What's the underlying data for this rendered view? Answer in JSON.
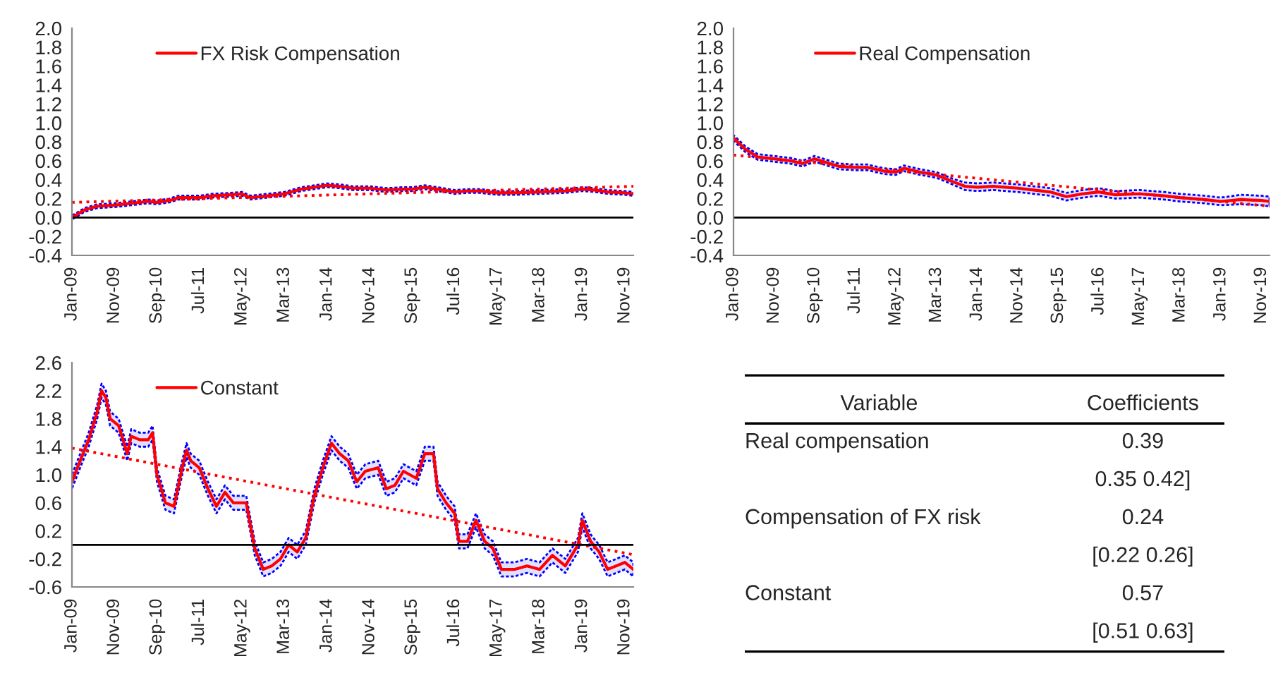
{
  "chart_data": [
    {
      "type": "line",
      "legend": "top left",
      "grid": false,
      "xlim": [
        "2009-01",
        "2020-01"
      ],
      "ylim": [
        -0.4,
        2.0
      ],
      "yticks": [
        {
          "value": -0.4,
          "label": "-0.4"
        },
        {
          "value": -0.2,
          "label": "-0.2"
        },
        {
          "value": 0,
          "label": "0.0"
        },
        {
          "value": 0.2,
          "label": "0.2"
        },
        {
          "value": 0.4,
          "label": "0.4"
        },
        {
          "value": 0.6,
          "label": "0.6"
        },
        {
          "value": 0.8,
          "label": "0.8"
        },
        {
          "value": 1.0,
          "label": "1.0"
        },
        {
          "value": 1.2,
          "label": "1.2"
        },
        {
          "value": 1.4,
          "label": "1.4"
        },
        {
          "value": 1.6,
          "label": "1.6"
        },
        {
          "value": 1.8,
          "label": "1.8"
        },
        {
          "value": 2.0,
          "label": "2.0"
        }
      ],
      "xticks": [
        {
          "value": "2009-01",
          "label": "Jan-09"
        },
        {
          "value": "2009-11",
          "label": "Nov-09"
        },
        {
          "value": "2010-09",
          "label": "Sep-10"
        },
        {
          "value": "2011-07",
          "label": "Jul-11"
        },
        {
          "value": "2012-05",
          "label": "May-12"
        },
        {
          "value": "2013-03",
          "label": "Mar-13"
        },
        {
          "value": "2014-01",
          "label": "Jan-14"
        },
        {
          "value": "2014-11",
          "label": "Nov-14"
        },
        {
          "value": "2015-09",
          "label": "Sep-15"
        },
        {
          "value": "2016-07",
          "label": "Jul-16"
        },
        {
          "value": "2017-05",
          "label": "May-17"
        },
        {
          "value": "2018-03",
          "label": "Mar-18"
        },
        {
          "value": "2019-01",
          "label": "Jan-19"
        },
        {
          "value": "2019-11",
          "label": "Nov-19"
        }
      ],
      "ref_lines": [
        {
          "axis": "y",
          "value": 0,
          "color": "#000000"
        }
      ],
      "series": [
        {
          "name": "FX Risk Compensation",
          "color": "#ff0000",
          "x": [
            "2009-01",
            "2009-04",
            "2009-07",
            "2009-11",
            "2010-03",
            "2010-07",
            "2010-09",
            "2010-12",
            "2011-02",
            "2011-07",
            "2011-10",
            "2012-02",
            "2012-05",
            "2012-07",
            "2012-11",
            "2013-03",
            "2013-07",
            "2013-10",
            "2014-01",
            "2014-04",
            "2014-07",
            "2014-11",
            "2015-03",
            "2015-07",
            "2015-09",
            "2015-12",
            "2016-03",
            "2016-07",
            "2016-10",
            "2017-01",
            "2017-05",
            "2017-09",
            "2018-03",
            "2018-09",
            "2019-01",
            "2019-04",
            "2019-07",
            "2019-11",
            "2020-01"
          ],
          "values": [
            0.0,
            0.08,
            0.12,
            0.13,
            0.15,
            0.17,
            0.16,
            0.18,
            0.21,
            0.21,
            0.23,
            0.24,
            0.25,
            0.21,
            0.23,
            0.25,
            0.3,
            0.32,
            0.34,
            0.33,
            0.31,
            0.31,
            0.29,
            0.3,
            0.3,
            0.32,
            0.3,
            0.27,
            0.28,
            0.28,
            0.26,
            0.26,
            0.27,
            0.28,
            0.3,
            0.29,
            0.27,
            0.26,
            0.25
          ],
          "lower": [
            -0.02,
            0.06,
            0.1,
            0.11,
            0.13,
            0.15,
            0.14,
            0.16,
            0.19,
            0.19,
            0.21,
            0.22,
            0.23,
            0.19,
            0.21,
            0.23,
            0.28,
            0.3,
            0.32,
            0.31,
            0.29,
            0.29,
            0.27,
            0.28,
            0.28,
            0.3,
            0.28,
            0.25,
            0.26,
            0.26,
            0.24,
            0.24,
            0.25,
            0.26,
            0.28,
            0.27,
            0.25,
            0.24,
            0.23
          ],
          "upper": [
            0.02,
            0.1,
            0.14,
            0.15,
            0.17,
            0.19,
            0.18,
            0.2,
            0.23,
            0.23,
            0.25,
            0.26,
            0.27,
            0.23,
            0.25,
            0.27,
            0.32,
            0.34,
            0.36,
            0.35,
            0.33,
            0.33,
            0.31,
            0.32,
            0.32,
            0.34,
            0.32,
            0.29,
            0.3,
            0.3,
            0.28,
            0.28,
            0.29,
            0.3,
            0.32,
            0.31,
            0.29,
            0.28,
            0.27
          ]
        },
        {
          "type": "line",
          "color": "#ff0000",
          "line_style": "dotted",
          "x": [
            "2009-01",
            "2020-01"
          ],
          "values": [
            0.16,
            0.33
          ]
        }
      ]
    },
    {
      "type": "line",
      "legend": "top left",
      "grid": false,
      "xlim": [
        "2009-01",
        "2020-01"
      ],
      "ylim": [
        -0.4,
        2.0
      ],
      "yticks": [
        {
          "value": -0.4,
          "label": "-0.4"
        },
        {
          "value": -0.2,
          "label": "-0.2"
        },
        {
          "value": 0,
          "label": "0.0"
        },
        {
          "value": 0.2,
          "label": "0.2"
        },
        {
          "value": 0.4,
          "label": "0.4"
        },
        {
          "value": 0.6,
          "label": "0.6"
        },
        {
          "value": 0.8,
          "label": "0.8"
        },
        {
          "value": 1.0,
          "label": "1.0"
        },
        {
          "value": 1.2,
          "label": "1.2"
        },
        {
          "value": 1.4,
          "label": "1.4"
        },
        {
          "value": 1.6,
          "label": "1.6"
        },
        {
          "value": 1.8,
          "label": "1.8"
        },
        {
          "value": 2.0,
          "label": "2.0"
        }
      ],
      "xticks": [
        {
          "value": "2009-01",
          "label": "Jan-09"
        },
        {
          "value": "2009-11",
          "label": "Nov-09"
        },
        {
          "value": "2010-09",
          "label": "Sep-10"
        },
        {
          "value": "2011-07",
          "label": "Jul-11"
        },
        {
          "value": "2012-05",
          "label": "May-12"
        },
        {
          "value": "2013-03",
          "label": "Mar-13"
        },
        {
          "value": "2014-01",
          "label": "Jan-14"
        },
        {
          "value": "2014-11",
          "label": "Nov-14"
        },
        {
          "value": "2015-09",
          "label": "Sep-15"
        },
        {
          "value": "2016-07",
          "label": "Jul-16"
        },
        {
          "value": "2017-05",
          "label": "May-17"
        },
        {
          "value": "2018-03",
          "label": "Mar-18"
        },
        {
          "value": "2019-01",
          "label": "Jan-19"
        },
        {
          "value": "2019-11",
          "label": "Nov-19"
        }
      ],
      "ref_lines": [
        {
          "axis": "y",
          "value": 0,
          "color": "#000000"
        }
      ],
      "series": [
        {
          "name": "Real Compensation",
          "color": "#ff0000",
          "x": [
            "2009-01",
            "2009-04",
            "2009-07",
            "2009-11",
            "2010-03",
            "2010-06",
            "2010-09",
            "2010-12",
            "2011-03",
            "2011-07",
            "2011-10",
            "2012-02",
            "2012-05",
            "2012-07",
            "2012-11",
            "2013-03",
            "2013-07",
            "2013-10",
            "2014-01",
            "2014-05",
            "2014-11",
            "2015-03",
            "2015-07",
            "2015-11",
            "2016-03",
            "2016-07",
            "2016-11",
            "2017-05",
            "2017-11",
            "2018-03",
            "2018-09",
            "2019-01",
            "2019-06",
            "2019-11",
            "2020-01"
          ],
          "values": [
            0.84,
            0.72,
            0.64,
            0.62,
            0.6,
            0.57,
            0.62,
            0.58,
            0.54,
            0.53,
            0.53,
            0.49,
            0.48,
            0.52,
            0.48,
            0.45,
            0.38,
            0.33,
            0.32,
            0.33,
            0.31,
            0.29,
            0.27,
            0.22,
            0.25,
            0.27,
            0.24,
            0.25,
            0.23,
            0.21,
            0.19,
            0.17,
            0.19,
            0.18,
            0.17
          ],
          "lower": [
            0.81,
            0.69,
            0.61,
            0.59,
            0.57,
            0.54,
            0.59,
            0.55,
            0.51,
            0.5,
            0.5,
            0.46,
            0.45,
            0.49,
            0.45,
            0.42,
            0.35,
            0.29,
            0.28,
            0.29,
            0.27,
            0.25,
            0.23,
            0.18,
            0.21,
            0.23,
            0.2,
            0.21,
            0.19,
            0.17,
            0.15,
            0.13,
            0.14,
            0.13,
            0.12
          ],
          "upper": [
            0.87,
            0.75,
            0.67,
            0.65,
            0.63,
            0.6,
            0.65,
            0.61,
            0.57,
            0.56,
            0.56,
            0.52,
            0.51,
            0.55,
            0.51,
            0.48,
            0.41,
            0.37,
            0.36,
            0.37,
            0.35,
            0.33,
            0.31,
            0.26,
            0.29,
            0.31,
            0.28,
            0.29,
            0.27,
            0.25,
            0.23,
            0.21,
            0.24,
            0.23,
            0.22
          ]
        },
        {
          "type": "line",
          "color": "#ff0000",
          "line_style": "dotted",
          "x": [
            "2009-01",
            "2020-01"
          ],
          "values": [
            0.66,
            0.12
          ]
        }
      ]
    },
    {
      "type": "line",
      "legend": "top left",
      "grid": false,
      "xlim": [
        "2009-01",
        "2020-01"
      ],
      "ylim": [
        -0.6,
        2.6
      ],
      "yticks": [
        {
          "value": -0.6,
          "label": "-0.6"
        },
        {
          "value": -0.2,
          "label": "-0.2"
        },
        {
          "value": 0.2,
          "label": "0.2"
        },
        {
          "value": 0.6,
          "label": "0.6"
        },
        {
          "value": 1.0,
          "label": "1.0"
        },
        {
          "value": 1.4,
          "label": "1.4"
        },
        {
          "value": 1.8,
          "label": "1.8"
        },
        {
          "value": 2.2,
          "label": "2.2"
        },
        {
          "value": 2.6,
          "label": "2.6"
        }
      ],
      "xticks": [
        {
          "value": "2009-01",
          "label": "Jan-09"
        },
        {
          "value": "2009-11",
          "label": "Nov-09"
        },
        {
          "value": "2010-09",
          "label": "Sep-10"
        },
        {
          "value": "2011-07",
          "label": "Jul-11"
        },
        {
          "value": "2012-05",
          "label": "May-12"
        },
        {
          "value": "2013-03",
          "label": "Mar-13"
        },
        {
          "value": "2014-01",
          "label": "Jan-14"
        },
        {
          "value": "2014-11",
          "label": "Nov-14"
        },
        {
          "value": "2015-09",
          "label": "Sep-15"
        },
        {
          "value": "2016-07",
          "label": "Jul-16"
        },
        {
          "value": "2017-05",
          "label": "May-17"
        },
        {
          "value": "2018-03",
          "label": "Mar-18"
        },
        {
          "value": "2019-01",
          "label": "Jan-19"
        },
        {
          "value": "2019-11",
          "label": "Nov-19"
        }
      ],
      "ref_lines": [
        {
          "axis": "y",
          "value": 0,
          "color": "#000000"
        }
      ],
      "series": [
        {
          "name": "Constant",
          "color": "#ff0000",
          "x": [
            "2009-01",
            "2009-03",
            "2009-05",
            "2009-07",
            "2009-08",
            "2009-09",
            "2009-10",
            "2009-12",
            "2010-02",
            "2010-03",
            "2010-05",
            "2010-07",
            "2010-08",
            "2010-09",
            "2010-11",
            "2011-01",
            "2011-03",
            "2011-04",
            "2011-05",
            "2011-07",
            "2011-09",
            "2011-11",
            "2012-01",
            "2012-03",
            "2012-05",
            "2012-06",
            "2012-08",
            "2012-10",
            "2012-12",
            "2013-02",
            "2013-04",
            "2013-06",
            "2013-08",
            "2013-10",
            "2013-12",
            "2014-02",
            "2014-04",
            "2014-06",
            "2014-08",
            "2014-10",
            "2015-01",
            "2015-03",
            "2015-05",
            "2015-07",
            "2015-10",
            "2015-12",
            "2016-02",
            "2016-03",
            "2016-05",
            "2016-07",
            "2016-08",
            "2016-10",
            "2016-12",
            "2017-02",
            "2017-04",
            "2017-06",
            "2017-09",
            "2017-12",
            "2018-03",
            "2018-06",
            "2018-09",
            "2018-12",
            "2019-01",
            "2019-03",
            "2019-05",
            "2019-07",
            "2019-09",
            "2019-11",
            "2020-01"
          ],
          "values": [
            0.9,
            1.2,
            1.5,
            1.9,
            2.2,
            2.1,
            1.8,
            1.7,
            1.3,
            1.55,
            1.5,
            1.5,
            1.6,
            1.0,
            0.6,
            0.55,
            1.1,
            1.35,
            1.2,
            1.1,
            0.8,
            0.55,
            0.75,
            0.6,
            0.6,
            0.6,
            -0.05,
            -0.35,
            -0.3,
            -0.2,
            0.0,
            -0.1,
            0.1,
            0.7,
            1.1,
            1.45,
            1.3,
            1.2,
            0.9,
            1.05,
            1.1,
            0.8,
            0.85,
            1.05,
            0.95,
            1.3,
            1.3,
            0.8,
            0.6,
            0.45,
            0.05,
            0.05,
            0.35,
            0.05,
            -0.05,
            -0.35,
            -0.35,
            -0.3,
            -0.35,
            -0.15,
            -0.3,
            0.0,
            0.35,
            0.05,
            -0.1,
            -0.35,
            -0.3,
            -0.25,
            -0.35
          ],
          "lower": [
            0.8,
            1.1,
            1.4,
            1.8,
            2.1,
            2.0,
            1.7,
            1.6,
            1.2,
            1.45,
            1.4,
            1.4,
            1.5,
            0.9,
            0.5,
            0.45,
            1.0,
            1.25,
            1.1,
            1.0,
            0.7,
            0.45,
            0.65,
            0.5,
            0.5,
            0.5,
            -0.15,
            -0.45,
            -0.4,
            -0.3,
            -0.1,
            -0.2,
            0.0,
            0.6,
            1.0,
            1.35,
            1.2,
            1.1,
            0.8,
            0.95,
            1.0,
            0.7,
            0.75,
            0.95,
            0.85,
            1.2,
            1.2,
            0.7,
            0.5,
            0.35,
            -0.05,
            -0.05,
            0.25,
            -0.05,
            -0.15,
            -0.45,
            -0.45,
            -0.4,
            -0.45,
            -0.25,
            -0.4,
            -0.1,
            0.25,
            -0.05,
            -0.2,
            -0.45,
            -0.4,
            -0.35,
            -0.45
          ],
          "upper": [
            1.0,
            1.3,
            1.6,
            2.0,
            2.3,
            2.2,
            1.9,
            1.8,
            1.4,
            1.65,
            1.6,
            1.6,
            1.7,
            1.1,
            0.7,
            0.65,
            1.2,
            1.45,
            1.3,
            1.2,
            0.9,
            0.65,
            0.85,
            0.7,
            0.7,
            0.7,
            0.05,
            -0.25,
            -0.2,
            -0.1,
            0.1,
            0.0,
            0.2,
            0.8,
            1.2,
            1.55,
            1.4,
            1.3,
            1.0,
            1.15,
            1.2,
            0.9,
            0.95,
            1.15,
            1.05,
            1.4,
            1.4,
            0.9,
            0.7,
            0.55,
            0.15,
            0.15,
            0.45,
            0.15,
            0.05,
            -0.25,
            -0.25,
            -0.2,
            -0.25,
            -0.05,
            -0.2,
            0.1,
            0.45,
            0.15,
            0.0,
            -0.25,
            -0.2,
            -0.15,
            -0.25
          ]
        },
        {
          "type": "line",
          "color": "#ff0000",
          "line_style": "dotted",
          "x": [
            "2009-01",
            "2020-01"
          ],
          "values": [
            1.38,
            -0.14
          ]
        }
      ]
    },
    {
      "type": "other",
      "annotations": [
        "Variable",
        "Coefficients",
        "Real compensation",
        "0.39",
        "0.35 0.42]",
        "Compensation of FX risk",
        "0.24",
        "[0.22 0.26]",
        "Constant",
        "0.57",
        "[0.51 0.63]"
      ]
    }
  ]
}
